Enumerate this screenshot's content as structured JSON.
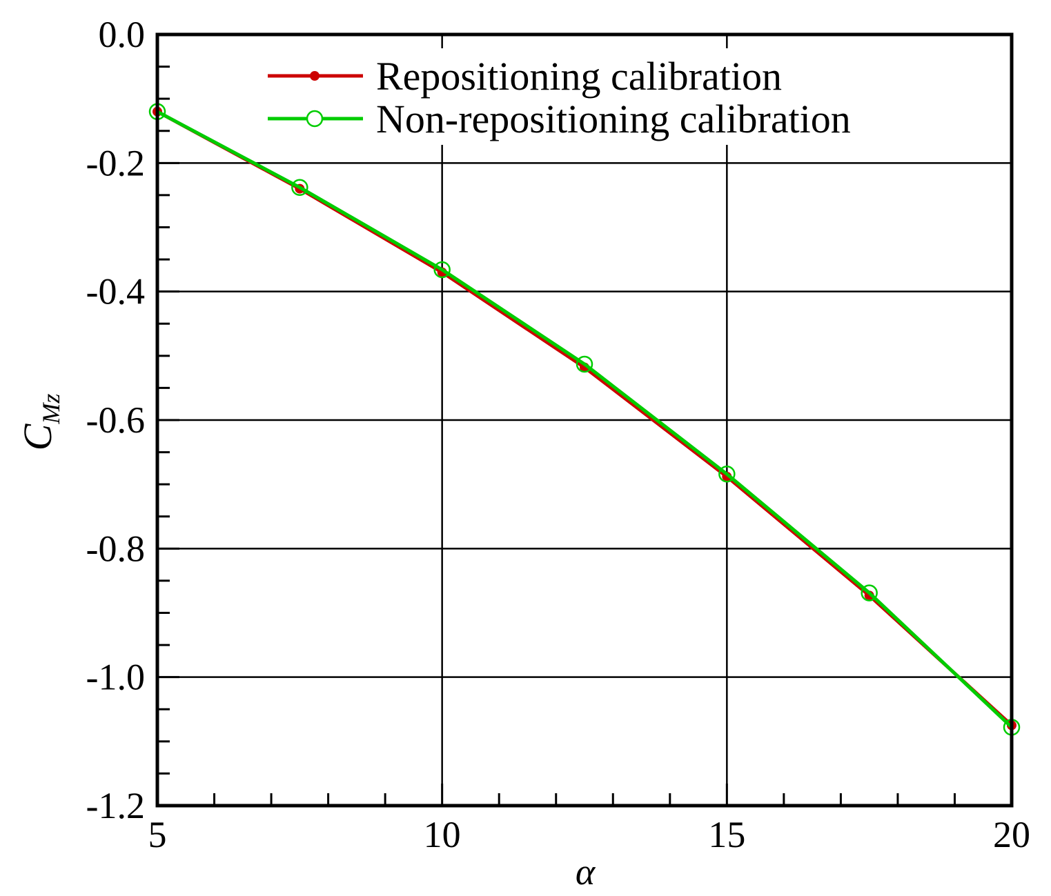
{
  "chart_data": {
    "type": "line",
    "title": "",
    "xlabel": "α",
    "ylabel": {
      "main": "C",
      "subscript": "Mz"
    },
    "xlim": [
      5,
      20
    ],
    "ylim": [
      -1.2,
      0.0
    ],
    "x_ticks": [
      5,
      10,
      15,
      20
    ],
    "x_tick_labels": [
      "5",
      "10",
      "15",
      "20"
    ],
    "y_ticks": [
      0.0,
      -0.2,
      -0.4,
      -0.6,
      -0.8,
      -1.0,
      -1.2
    ],
    "y_tick_labels": [
      "0.0",
      "-0.2",
      "-0.4",
      "-0.6",
      "-0.8",
      "-1.0",
      "-1.2"
    ],
    "x_minor_step": 1,
    "y_minor_step": 0.05,
    "grid": true,
    "legend_position": "top-center",
    "x": [
      5,
      7.5,
      10,
      12.5,
      15,
      17.5,
      20
    ],
    "series": [
      {
        "name": "Repositioning calibration",
        "color": "#cc0000",
        "marker": "filled-circle",
        "values": [
          -0.12,
          -0.24,
          -0.37,
          -0.518,
          -0.688,
          -0.873,
          -1.075
        ]
      },
      {
        "name": "Non-repositioning calibration",
        "color": "#00cc00",
        "marker": "open-circle",
        "values": [
          -0.12,
          -0.238,
          -0.366,
          -0.513,
          -0.684,
          -0.869,
          -1.078
        ]
      }
    ]
  }
}
